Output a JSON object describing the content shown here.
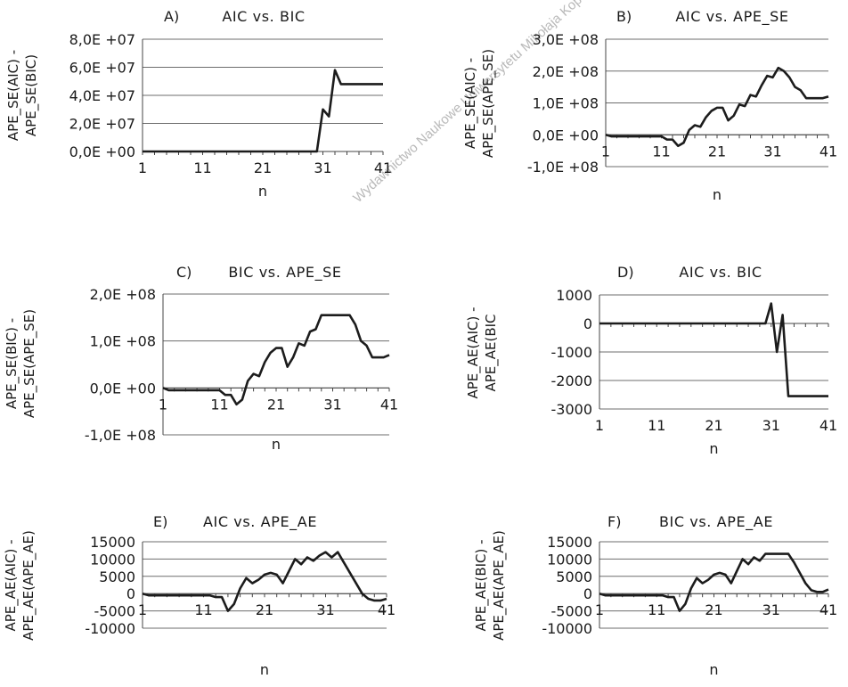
{
  "watermark": "Wydawnictwo Naukowe Uniwersytetu Mikołaja Kopernika",
  "chart_data": [
    {
      "type": "line",
      "panel": "A)",
      "title": "AIC vs. BIC",
      "ylabel": [
        "APE_SE(AIC) -",
        "APE_SE(BIC)"
      ],
      "xlabel": "n",
      "xticks": [
        1,
        11,
        21,
        31,
        41
      ],
      "yticks": [
        0,
        20000000,
        40000000,
        60000000,
        80000000
      ],
      "ytick_labels": [
        "0,0E +00",
        "2,0E +07",
        "4,0E +07",
        "6,0E +07",
        "8,0E +07"
      ],
      "ylim": [
        0,
        80000000
      ],
      "x": [
        1,
        2,
        3,
        4,
        5,
        6,
        7,
        8,
        9,
        10,
        11,
        12,
        13,
        14,
        15,
        16,
        17,
        18,
        19,
        20,
        21,
        22,
        23,
        24,
        25,
        26,
        27,
        28,
        29,
        30,
        31,
        32,
        33,
        34,
        35,
        36,
        37,
        38,
        39,
        40,
        41
      ],
      "values": [
        0,
        0,
        0,
        0,
        0,
        0,
        0,
        0,
        0,
        0,
        0,
        0,
        0,
        0,
        0,
        0,
        0,
        0,
        0,
        0,
        0,
        0,
        0,
        0,
        0,
        0,
        0,
        0,
        0,
        0,
        30000000,
        25000000,
        58000000,
        48000000,
        48000000,
        48000000,
        48000000,
        48000000,
        48000000,
        48000000,
        48000000
      ]
    },
    {
      "type": "line",
      "panel": "B)",
      "title": "AIC vs. APE_SE",
      "ylabel": [
        "APE_SE(AIC) -",
        "APE_SE(APE_SE)"
      ],
      "xlabel": "n",
      "xticks": [
        1,
        11,
        21,
        31,
        41
      ],
      "yticks": [
        -100000000,
        0,
        100000000,
        200000000,
        300000000
      ],
      "ytick_labels": [
        "-1,0E +08",
        "0,0E +00",
        "1,0E +08",
        "2,0E +08",
        "3,0E +08"
      ],
      "ylim": [
        -100000000,
        300000000
      ],
      "x": [
        1,
        2,
        3,
        4,
        5,
        6,
        7,
        8,
        9,
        10,
        11,
        12,
        13,
        14,
        15,
        16,
        17,
        18,
        19,
        20,
        21,
        22,
        23,
        24,
        25,
        26,
        27,
        28,
        29,
        30,
        31,
        32,
        33,
        34,
        35,
        36,
        37,
        38,
        39,
        40,
        41
      ],
      "values": [
        0,
        -5000000,
        -5000000,
        -5000000,
        -5000000,
        -5000000,
        -5000000,
        -5000000,
        -5000000,
        -5000000,
        -5000000,
        -15000000,
        -15000000,
        -35000000,
        -25000000,
        15000000,
        30000000,
        25000000,
        55000000,
        75000000,
        85000000,
        85000000,
        45000000,
        60000000,
        95000000,
        90000000,
        125000000,
        120000000,
        155000000,
        185000000,
        180000000,
        210000000,
        200000000,
        180000000,
        150000000,
        140000000,
        115000000,
        115000000,
        115000000,
        115000000,
        120000000
      ]
    },
    {
      "type": "line",
      "panel": "C)",
      "title": "BIC vs. APE_SE",
      "ylabel": [
        "APE_SE(BIC) -",
        "APE_SE(APE_SE)"
      ],
      "xlabel": "n",
      "xticks": [
        1,
        11,
        21,
        31,
        41
      ],
      "yticks": [
        -100000000,
        0,
        100000000,
        200000000
      ],
      "ytick_labels": [
        "-1,0E +08",
        "0,0E +00",
        "1,0E +08",
        "2,0E +08"
      ],
      "ylim": [
        -100000000,
        200000000
      ],
      "x": [
        1,
        2,
        3,
        4,
        5,
        6,
        7,
        8,
        9,
        10,
        11,
        12,
        13,
        14,
        15,
        16,
        17,
        18,
        19,
        20,
        21,
        22,
        23,
        24,
        25,
        26,
        27,
        28,
        29,
        30,
        31,
        32,
        33,
        34,
        35,
        36,
        37,
        38,
        39,
        40,
        41
      ],
      "values": [
        0,
        -5000000,
        -5000000,
        -5000000,
        -5000000,
        -5000000,
        -5000000,
        -5000000,
        -5000000,
        -5000000,
        -5000000,
        -15000000,
        -15000000,
        -35000000,
        -25000000,
        15000000,
        30000000,
        25000000,
        55000000,
        75000000,
        85000000,
        85000000,
        45000000,
        65000000,
        95000000,
        90000000,
        120000000,
        125000000,
        155000000,
        155000000,
        155000000,
        155000000,
        155000000,
        155000000,
        135000000,
        100000000,
        90000000,
        65000000,
        65000000,
        65000000,
        70000000
      ]
    },
    {
      "type": "line",
      "panel": "D)",
      "title": "AIC vs. BIC",
      "ylabel": [
        "APE_AE(AIC) -",
        "APE_AE(BIC"
      ],
      "xlabel": "n",
      "xticks": [
        1,
        11,
        21,
        31,
        41
      ],
      "yticks": [
        -3000,
        -2000,
        -1000,
        0,
        1000
      ],
      "ytick_labels": [
        "-3000",
        "-2000",
        "-1000",
        "0",
        "1000"
      ],
      "ylim": [
        -3000,
        1000
      ],
      "x": [
        1,
        2,
        3,
        4,
        5,
        6,
        7,
        8,
        9,
        10,
        11,
        12,
        13,
        14,
        15,
        16,
        17,
        18,
        19,
        20,
        21,
        22,
        23,
        24,
        25,
        26,
        27,
        28,
        29,
        30,
        31,
        32,
        33,
        34,
        35,
        36,
        37,
        38,
        39,
        40,
        41
      ],
      "values": [
        0,
        0,
        0,
        0,
        0,
        0,
        0,
        0,
        0,
        0,
        0,
        0,
        0,
        0,
        0,
        0,
        0,
        0,
        0,
        0,
        0,
        0,
        0,
        0,
        0,
        0,
        0,
        0,
        0,
        0,
        700,
        -1000,
        300,
        -2550,
        -2550,
        -2550,
        -2550,
        -2550,
        -2550,
        -2550,
        -2550
      ]
    },
    {
      "type": "line",
      "panel": "E)",
      "title": "AIC vs. APE_AE",
      "ylabel": [
        "APE_AE(AIC) -",
        "APE_AE(APE_AE)"
      ],
      "xlabel": "n",
      "xticks": [
        1,
        11,
        21,
        31,
        41
      ],
      "yticks": [
        -10000,
        -5000,
        0,
        5000,
        10000,
        15000
      ],
      "ytick_labels": [
        "-10000",
        "-5000",
        "0",
        "5000",
        "10000",
        "15000"
      ],
      "ylim": [
        -10000,
        15000
      ],
      "x": [
        1,
        2,
        3,
        4,
        5,
        6,
        7,
        8,
        9,
        10,
        11,
        12,
        13,
        14,
        15,
        16,
        17,
        18,
        19,
        20,
        21,
        22,
        23,
        24,
        25,
        26,
        27,
        28,
        29,
        30,
        31,
        32,
        33,
        34,
        35,
        36,
        37,
        38,
        39,
        40,
        41
      ],
      "values": [
        0,
        -500,
        -500,
        -500,
        -500,
        -500,
        -500,
        -500,
        -500,
        -500,
        -500,
        -500,
        -1000,
        -1000,
        -5000,
        -3000,
        1500,
        4500,
        3000,
        4000,
        5500,
        6000,
        5500,
        3000,
        6500,
        10000,
        8500,
        10500,
        9500,
        11000,
        12000,
        10500,
        12000,
        9000,
        6000,
        3000,
        0,
        -1500,
        -2000,
        -2000,
        -1500
      ]
    },
    {
      "type": "line",
      "panel": "F)",
      "title": "BIC vs. APE_AE",
      "ylabel": [
        "APE_AE(BIC) -",
        "APE_AE(APE_AE)"
      ],
      "xlabel": "n",
      "xticks": [
        1,
        11,
        21,
        31,
        41
      ],
      "yticks": [
        -10000,
        -5000,
        0,
        5000,
        10000,
        15000
      ],
      "ytick_labels": [
        "-10000",
        "-5000",
        "0",
        "5000",
        "10000",
        "15000"
      ],
      "ylim": [
        -10000,
        15000
      ],
      "x": [
        1,
        2,
        3,
        4,
        5,
        6,
        7,
        8,
        9,
        10,
        11,
        12,
        13,
        14,
        15,
        16,
        17,
        18,
        19,
        20,
        21,
        22,
        23,
        24,
        25,
        26,
        27,
        28,
        29,
        30,
        31,
        32,
        33,
        34,
        35,
        36,
        37,
        38,
        39,
        40,
        41
      ],
      "values": [
        0,
        -500,
        -500,
        -500,
        -500,
        -500,
        -500,
        -500,
        -500,
        -500,
        -500,
        -500,
        -1000,
        -1000,
        -5000,
        -3000,
        1500,
        4500,
        3000,
        4000,
        5500,
        6000,
        5500,
        3000,
        6500,
        10000,
        8500,
        10500,
        9500,
        11500,
        11500,
        11500,
        11500,
        11500,
        9000,
        6000,
        3000,
        1000,
        500,
        500,
        1200
      ]
    }
  ]
}
